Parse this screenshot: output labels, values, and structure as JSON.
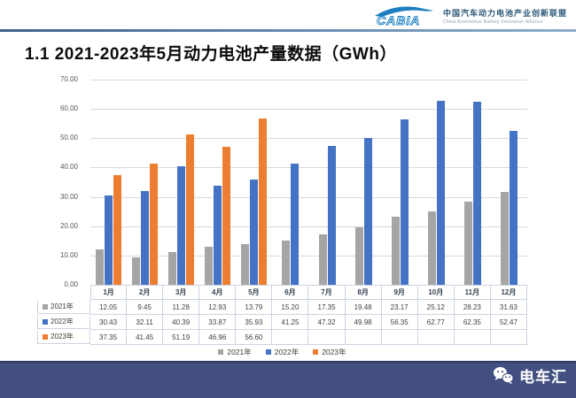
{
  "header": {
    "logo_text": "CABIA",
    "org_name_cn": "中国汽车动力电池产业创新联盟",
    "org_name_en": "China Automotive Battery Innovation Alliance"
  },
  "title": "1.1 2021-2023年5月动力电池产量数据（GWh）",
  "chart_data": {
    "type": "bar",
    "title": "1.1 2021-2023年5月动力电池产量数据（GWh）",
    "categories": [
      "1月",
      "2月",
      "3月",
      "4月",
      "5月",
      "6月",
      "7月",
      "8月",
      "9月",
      "10月",
      "11月",
      "12月"
    ],
    "series": [
      {
        "name": "2021年",
        "color": "#a5a5a5",
        "values": [
          12.05,
          9.45,
          11.28,
          12.93,
          13.79,
          15.2,
          17.35,
          19.48,
          23.17,
          25.12,
          28.23,
          31.63
        ]
      },
      {
        "name": "2022年",
        "color": "#4472c4",
        "values": [
          30.43,
          32.11,
          40.39,
          33.87,
          35.93,
          41.25,
          47.32,
          49.98,
          56.35,
          62.77,
          62.35,
          52.47
        ]
      },
      {
        "name": "2023年",
        "color": "#ed7d31",
        "values": [
          37.35,
          41.45,
          51.19,
          46.96,
          56.6,
          null,
          null,
          null,
          null,
          null,
          null,
          null
        ]
      }
    ],
    "xlabel": "",
    "ylabel": "",
    "ylim": [
      0,
      70
    ],
    "ytick_step": 10,
    "yticks": [
      "70.00",
      "60.00",
      "50.00",
      "40.00",
      "30.00",
      "20.00",
      "10.00",
      "0.00"
    ],
    "grid": "horizontal",
    "legend_position": "bottom",
    "data_table_shown": true,
    "colors": {
      "gridline": "#d9d9d9",
      "axis": "#bfbfbf",
      "table_border": "#ccd4e2"
    }
  },
  "footer": {
    "brand": "电车汇"
  }
}
